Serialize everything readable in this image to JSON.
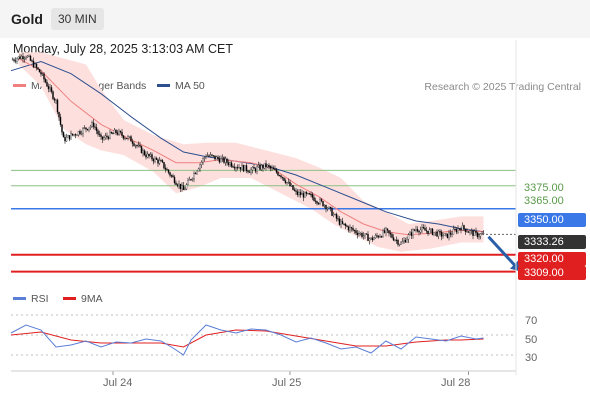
{
  "header": {
    "symbol": "Gold",
    "timeframe": "30 MIN"
  },
  "datetime": "Monday, July 28, 2025 3:13:03 AM CET",
  "legend": {
    "ma20": "MA 20 + Bollinger Bands",
    "ma50": "MA 50",
    "credit": "Research © 2025 Trading Central"
  },
  "colors": {
    "ma20": "#f08080",
    "ma50": "#2d4f8f",
    "band": "#fde0de",
    "up": "#ffffff",
    "down": "#000000",
    "resistance": "#3b78e7",
    "support": "#e02020",
    "green_level": "#8cc084",
    "last": "#333333",
    "rsi": "#5b7fd6",
    "rsi_ma": "#e02020"
  },
  "levels": [
    {
      "label": "3375.00",
      "value": 3375.0,
      "kind": "green"
    },
    {
      "label": "3365.00",
      "value": 3365.0,
      "kind": "green"
    },
    {
      "label": "3350.00",
      "value": 3350.0,
      "kind": "resistance"
    },
    {
      "label": "3333.26",
      "value": 3333.26,
      "kind": "last"
    },
    {
      "label": "3320.00",
      "value": 3320.0,
      "kind": "support"
    },
    {
      "label": "3309.00",
      "value": 3309.0,
      "kind": "support"
    }
  ],
  "rsi_legend": {
    "rsi": "RSI",
    "ma": "9MA"
  },
  "rsi_ticks": [
    "70",
    "50",
    "30"
  ],
  "x_ticks": [
    "Jul 24",
    "Jul 25",
    "Jul 28"
  ],
  "chart_data": {
    "type": "candlestick",
    "ylim": [
      3297,
      3460
    ],
    "price_path": [
      [
        0,
        3447
      ],
      [
        10,
        3450
      ],
      [
        20,
        3438
      ],
      [
        30,
        3420
      ],
      [
        35,
        3395
      ],
      [
        45,
        3400
      ],
      [
        55,
        3405
      ],
      [
        60,
        3395
      ],
      [
        70,
        3400
      ],
      [
        80,
        3395
      ],
      [
        90,
        3385
      ],
      [
        100,
        3380
      ],
      [
        108,
        3370
      ],
      [
        115,
        3362
      ],
      [
        120,
        3370
      ],
      [
        130,
        3385
      ],
      [
        140,
        3382
      ],
      [
        150,
        3378
      ],
      [
        160,
        3375
      ],
      [
        170,
        3378
      ],
      [
        180,
        3372
      ],
      [
        190,
        3360
      ],
      [
        200,
        3358
      ],
      [
        210,
        3352
      ],
      [
        220,
        3340
      ],
      [
        230,
        3335
      ],
      [
        240,
        3330
      ],
      [
        250,
        3335
      ],
      [
        260,
        3327
      ],
      [
        270,
        3337
      ],
      [
        280,
        3335
      ],
      [
        290,
        3332
      ],
      [
        300,
        3338
      ],
      [
        310,
        3333
      ],
      [
        315,
        3333
      ]
    ],
    "ma20": [
      [
        5,
        3448
      ],
      [
        20,
        3440
      ],
      [
        40,
        3420
      ],
      [
        60,
        3405
      ],
      [
        80,
        3395
      ],
      [
        95,
        3388
      ],
      [
        110,
        3380
      ],
      [
        125,
        3380
      ],
      [
        140,
        3382
      ],
      [
        160,
        3380
      ],
      [
        175,
        3376
      ],
      [
        190,
        3366
      ],
      [
        205,
        3358
      ],
      [
        220,
        3348
      ],
      [
        235,
        3340
      ],
      [
        250,
        3335
      ],
      [
        265,
        3333
      ],
      [
        280,
        3334
      ],
      [
        300,
        3336
      ],
      [
        315,
        3335
      ]
    ],
    "ma50": [
      [
        0,
        3440
      ],
      [
        20,
        3446
      ],
      [
        40,
        3438
      ],
      [
        60,
        3425
      ],
      [
        80,
        3410
      ],
      [
        100,
        3396
      ],
      [
        115,
        3387
      ],
      [
        130,
        3384
      ],
      [
        150,
        3381
      ],
      [
        170,
        3378
      ],
      [
        190,
        3372
      ],
      [
        210,
        3364
      ],
      [
        230,
        3356
      ],
      [
        250,
        3348
      ],
      [
        270,
        3342
      ],
      [
        285,
        3340
      ],
      [
        300,
        3337
      ],
      [
        315,
        3335
      ]
    ],
    "bb_upper": [
      [
        5,
        3452
      ],
      [
        20,
        3452
      ],
      [
        35,
        3448
      ],
      [
        50,
        3444
      ],
      [
        60,
        3428
      ],
      [
        75,
        3408
      ],
      [
        95,
        3398
      ],
      [
        115,
        3392
      ],
      [
        130,
        3393
      ],
      [
        150,
        3393
      ],
      [
        170,
        3388
      ],
      [
        190,
        3383
      ],
      [
        205,
        3377
      ],
      [
        220,
        3370
      ],
      [
        235,
        3355
      ],
      [
        250,
        3348
      ],
      [
        265,
        3340
      ],
      [
        280,
        3342
      ],
      [
        300,
        3345
      ],
      [
        315,
        3345
      ]
    ],
    "bb_lower": [
      [
        5,
        3444
      ],
      [
        20,
        3430
      ],
      [
        35,
        3402
      ],
      [
        50,
        3392
      ],
      [
        60,
        3388
      ],
      [
        75,
        3385
      ],
      [
        95,
        3374
      ],
      [
        110,
        3360
      ],
      [
        125,
        3364
      ],
      [
        140,
        3370
      ],
      [
        160,
        3370
      ],
      [
        180,
        3360
      ],
      [
        200,
        3350
      ],
      [
        215,
        3340
      ],
      [
        230,
        3332
      ],
      [
        245,
        3325
      ],
      [
        260,
        3322
      ],
      [
        280,
        3324
      ],
      [
        300,
        3328
      ],
      [
        315,
        3328
      ]
    ],
    "rsi": [
      [
        0,
        52
      ],
      [
        10,
        60
      ],
      [
        20,
        55
      ],
      [
        30,
        38
      ],
      [
        40,
        40
      ],
      [
        50,
        44
      ],
      [
        60,
        38
      ],
      [
        70,
        43
      ],
      [
        80,
        42
      ],
      [
        90,
        46
      ],
      [
        100,
        44
      ],
      [
        108,
        37
      ],
      [
        115,
        30
      ],
      [
        120,
        45
      ],
      [
        130,
        60
      ],
      [
        140,
        55
      ],
      [
        150,
        52
      ],
      [
        160,
        56
      ],
      [
        170,
        55
      ],
      [
        180,
        50
      ],
      [
        190,
        43
      ],
      [
        200,
        47
      ],
      [
        210,
        42
      ],
      [
        220,
        36
      ],
      [
        230,
        38
      ],
      [
        240,
        32
      ],
      [
        250,
        44
      ],
      [
        260,
        36
      ],
      [
        270,
        48
      ],
      [
        280,
        46
      ],
      [
        290,
        44
      ],
      [
        300,
        49
      ],
      [
        310,
        46
      ],
      [
        315,
        47
      ]
    ],
    "rsi_ma": [
      [
        0,
        50
      ],
      [
        20,
        53
      ],
      [
        40,
        45
      ],
      [
        60,
        42
      ],
      [
        80,
        42
      ],
      [
        100,
        42
      ],
      [
        115,
        38
      ],
      [
        130,
        50
      ],
      [
        150,
        55
      ],
      [
        170,
        54
      ],
      [
        190,
        49
      ],
      [
        210,
        44
      ],
      [
        230,
        39
      ],
      [
        250,
        39
      ],
      [
        270,
        43
      ],
      [
        290,
        45
      ],
      [
        300,
        45
      ],
      [
        315,
        46
      ]
    ],
    "rsi_ylim": [
      10,
      80
    ],
    "x_tick_positions": [
      68,
      186,
      305
    ],
    "arrow": {
      "from": [
        315,
        3333
      ],
      "to": [
        340,
        3309
      ]
    }
  }
}
